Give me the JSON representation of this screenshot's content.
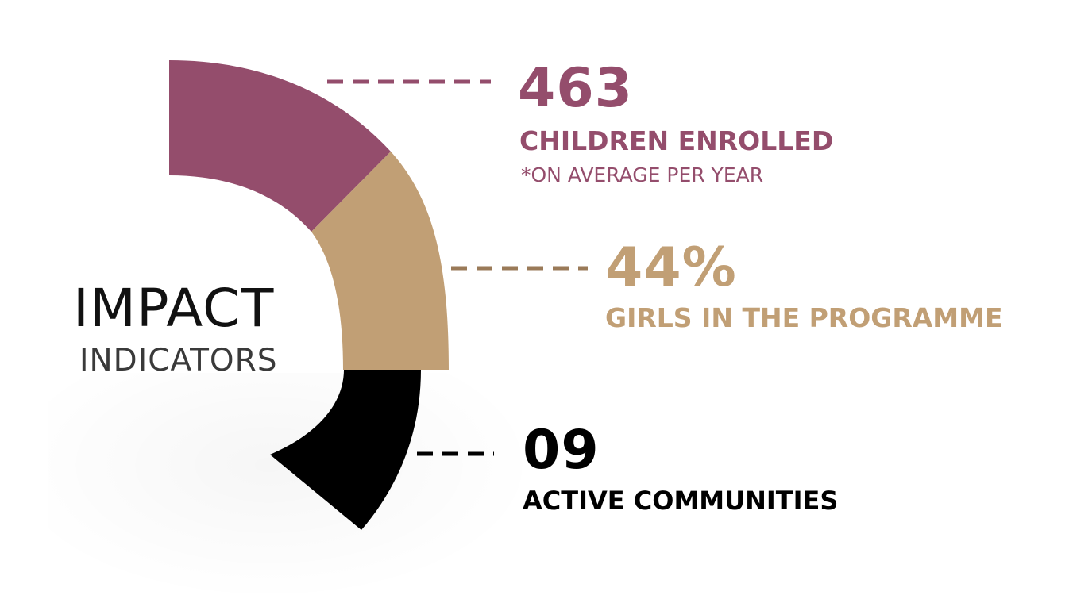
{
  "center": {
    "title": "IMPACT",
    "subtitle": "INDICATORS"
  },
  "indicators": [
    {
      "value": "463",
      "label": "CHILDREN ENROLLED",
      "note": "*ON AVERAGE PER YEAR",
      "color": "#944d6c"
    },
    {
      "value": "44%",
      "label": "GIRLS IN THE PROGRAMME",
      "color": "#c19f75"
    },
    {
      "value": "09",
      "label": "ACTIVE COMMUNITIES",
      "color": "#000000"
    }
  ],
  "connector_colors": [
    "#944d6c",
    "#9a7a58",
    "#000000"
  ]
}
